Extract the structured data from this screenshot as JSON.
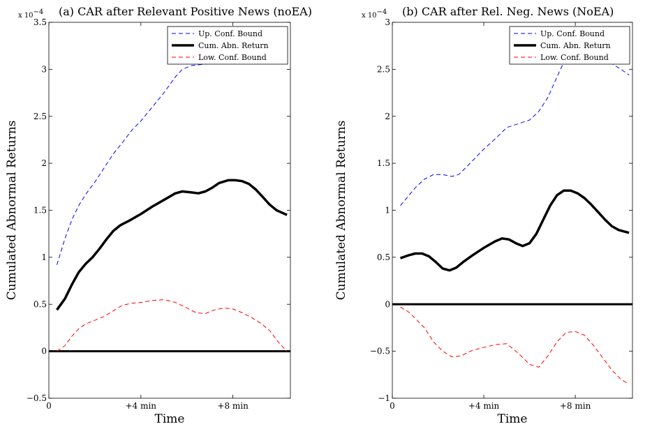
{
  "chart_data": [
    {
      "type": "line",
      "title": "(a) CAR after Relevant Positive News (noEA)",
      "exponent_label": "x 10",
      "exponent_power": "−4",
      "xlabel": "Time",
      "ylabel": "Cumulated Abnormal Returns",
      "xlim": [
        0,
        10.5
      ],
      "ylim": [
        -0.5,
        3.5
      ],
      "xticks": [
        0,
        4,
        8
      ],
      "xtick_labels": [
        "0",
        "+4 min",
        "+8 min"
      ],
      "yticks": [
        -0.5,
        0,
        0.5,
        1,
        1.5,
        2,
        2.5,
        3,
        3.5
      ],
      "ytick_labels": [
        "−0.5",
        "0",
        "0.5",
        "1",
        "1.5",
        "2",
        "2.5",
        "3",
        "3.5"
      ],
      "legend_position": "top-right",
      "grid": false,
      "zero_line": 0,
      "series": [
        {
          "name": "Up. Conf. Bound",
          "color": "#0000ff",
          "style": "dashed",
          "x": [
            0.35,
            0.7,
            1.0,
            1.3,
            1.6,
            2.0,
            2.4,
            2.8,
            3.2,
            3.6,
            4.0,
            4.5,
            5.0,
            5.5,
            5.8,
            6.2,
            6.6,
            7.0,
            7.4,
            7.8,
            8.2,
            8.6,
            9.0,
            9.4,
            9.7,
            10.0,
            10.35
          ],
          "values": [
            0.92,
            1.2,
            1.4,
            1.55,
            1.67,
            1.8,
            1.95,
            2.1,
            2.22,
            2.35,
            2.45,
            2.6,
            2.75,
            2.92,
            3.0,
            3.04,
            3.05,
            3.06,
            3.08,
            3.12,
            3.15,
            3.16,
            3.17,
            3.16,
            3.15,
            3.12,
            3.08
          ]
        },
        {
          "name": "Cum. Abn. Return",
          "color": "#000000",
          "style": "solid",
          "x": [
            0.35,
            0.7,
            1.0,
            1.3,
            1.6,
            1.9,
            2.2,
            2.5,
            2.8,
            3.1,
            3.5,
            4.0,
            4.5,
            5.0,
            5.5,
            5.8,
            6.2,
            6.5,
            6.8,
            7.1,
            7.4,
            7.8,
            8.1,
            8.4,
            8.7,
            9.0,
            9.3,
            9.6,
            9.9,
            10.35
          ],
          "values": [
            0.44,
            0.56,
            0.71,
            0.84,
            0.93,
            1.0,
            1.09,
            1.19,
            1.28,
            1.34,
            1.39,
            1.46,
            1.54,
            1.61,
            1.68,
            1.7,
            1.69,
            1.68,
            1.7,
            1.74,
            1.79,
            1.82,
            1.82,
            1.81,
            1.78,
            1.72,
            1.64,
            1.56,
            1.5,
            1.45
          ]
        },
        {
          "name": "Low. Conf. Bound",
          "color": "#ff0000",
          "style": "dashed",
          "x": [
            0.35,
            0.7,
            1.0,
            1.3,
            1.6,
            2.0,
            2.4,
            2.8,
            3.2,
            3.6,
            4.0,
            4.5,
            5.0,
            5.5,
            6.0,
            6.4,
            6.8,
            7.2,
            7.6,
            8.0,
            8.4,
            8.8,
            9.2,
            9.6,
            10.0,
            10.35
          ],
          "values": [
            0.0,
            0.06,
            0.16,
            0.24,
            0.29,
            0.33,
            0.37,
            0.43,
            0.49,
            0.51,
            0.52,
            0.54,
            0.55,
            0.52,
            0.46,
            0.41,
            0.4,
            0.44,
            0.46,
            0.45,
            0.41,
            0.36,
            0.3,
            0.22,
            0.09,
            0.0
          ]
        }
      ]
    },
    {
      "type": "line",
      "title": "(b) CAR after Rel. Neg. News (NoEA)",
      "exponent_label": "x 10",
      "exponent_power": "−4",
      "xlabel": "Time",
      "ylabel": "Cumulated Abnormal Returns",
      "xlim": [
        0,
        10.5
      ],
      "ylim": [
        -1,
        3
      ],
      "xticks": [
        0,
        4,
        8
      ],
      "xtick_labels": [
        "0",
        "+4 min",
        "+8 min"
      ],
      "yticks": [
        -1,
        -0.5,
        0,
        0.5,
        1,
        1.5,
        2,
        2.5,
        3
      ],
      "ytick_labels": [
        "−1",
        "−0.5",
        "0",
        "0.5",
        "1",
        "1.5",
        "2",
        "2.5",
        "3"
      ],
      "legend_position": "top-right",
      "grid": false,
      "zero_line": 0,
      "series": [
        {
          "name": "Up. Conf. Bound",
          "color": "#0000ff",
          "style": "dashed",
          "x": [
            0.35,
            0.7,
            1.0,
            1.4,
            1.8,
            2.2,
            2.6,
            2.9,
            3.2,
            3.6,
            4.0,
            4.5,
            5.0,
            5.5,
            6.0,
            6.4,
            6.8,
            7.2,
            7.6,
            8.0,
            8.4,
            8.8,
            9.2,
            9.6,
            10.0,
            10.35
          ],
          "values": [
            1.05,
            1.15,
            1.24,
            1.33,
            1.38,
            1.38,
            1.36,
            1.38,
            1.45,
            1.55,
            1.65,
            1.76,
            1.88,
            1.92,
            1.96,
            2.05,
            2.2,
            2.42,
            2.63,
            2.7,
            2.72,
            2.68,
            2.62,
            2.56,
            2.5,
            2.44
          ]
        },
        {
          "name": "Cum. Abn. Return",
          "color": "#000000",
          "style": "solid",
          "x": [
            0.35,
            0.7,
            1.0,
            1.3,
            1.6,
            1.9,
            2.2,
            2.5,
            2.8,
            3.1,
            3.5,
            4.0,
            4.5,
            4.8,
            5.1,
            5.4,
            5.7,
            6.0,
            6.3,
            6.6,
            6.9,
            7.2,
            7.5,
            7.8,
            8.1,
            8.4,
            8.7,
            9.0,
            9.3,
            9.6,
            9.9,
            10.35
          ],
          "values": [
            0.49,
            0.52,
            0.54,
            0.54,
            0.51,
            0.45,
            0.38,
            0.36,
            0.39,
            0.45,
            0.52,
            0.6,
            0.67,
            0.7,
            0.69,
            0.65,
            0.62,
            0.65,
            0.75,
            0.9,
            1.05,
            1.16,
            1.21,
            1.21,
            1.18,
            1.13,
            1.06,
            0.98,
            0.9,
            0.83,
            0.79,
            0.76
          ]
        },
        {
          "name": "Low. Conf. Bound",
          "color": "#ff0000",
          "style": "dashed",
          "x": [
            0.35,
            0.7,
            1.0,
            1.4,
            1.8,
            2.2,
            2.6,
            3.0,
            3.5,
            4.0,
            4.5,
            5.0,
            5.5,
            6.0,
            6.4,
            6.8,
            7.2,
            7.6,
            8.0,
            8.4,
            8.8,
            9.2,
            9.6,
            10.0,
            10.35
          ],
          "values": [
            -0.03,
            -0.08,
            -0.15,
            -0.25,
            -0.4,
            -0.5,
            -0.56,
            -0.55,
            -0.49,
            -0.46,
            -0.43,
            -0.42,
            -0.52,
            -0.64,
            -0.67,
            -0.55,
            -0.4,
            -0.3,
            -0.29,
            -0.33,
            -0.44,
            -0.57,
            -0.7,
            -0.8,
            -0.85
          ]
        }
      ]
    }
  ]
}
